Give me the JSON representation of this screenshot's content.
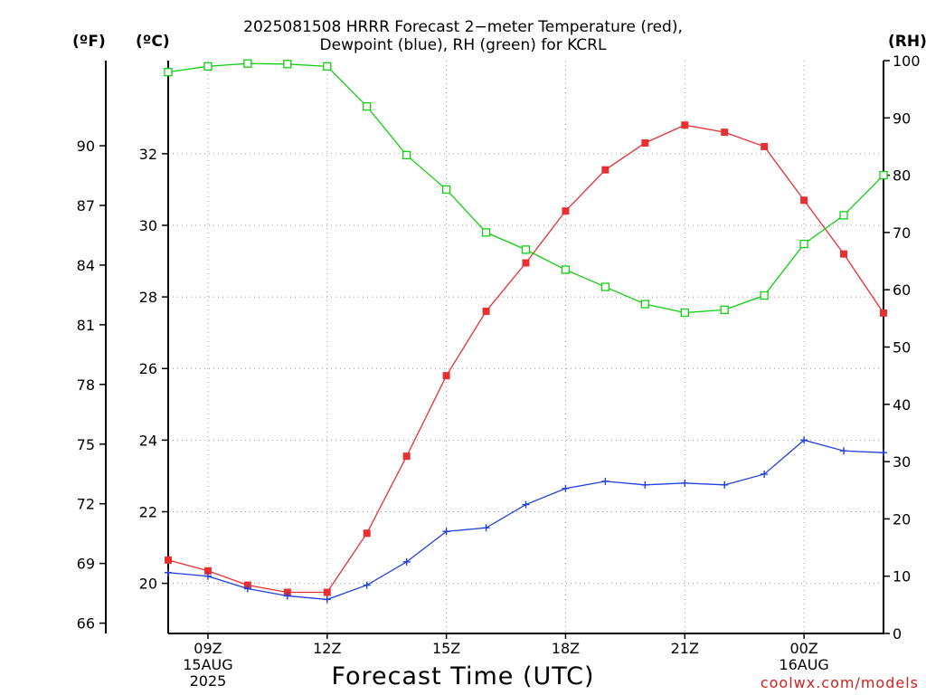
{
  "title_line1": "2025081508 HRRR Forecast 2−meter Temperature (red),",
  "title_line2": "Dewpoint (blue), RH (green) for KCRL",
  "unit_f": "(ºF)",
  "unit_c": "(ºC)",
  "unit_rh": "(RH)",
  "xlabel": "Forecast Time (UTC)",
  "credit": "coolwx.com/models",
  "colors": {
    "temperature": "#e83030",
    "dewpoint": "#2040e0",
    "rh": "#10d010",
    "grid": "#9a9a9a",
    "axis": "#000000"
  },
  "chart_data": {
    "type": "line",
    "title": "2025081508 HRRR Forecast 2−meter Temperature (red), Dewpoint (blue), RH (green) for KCRL",
    "xlabel": "Forecast Time (UTC)",
    "x": [
      "08Z",
      "09Z",
      "10Z",
      "11Z",
      "12Z",
      "13Z",
      "14Z",
      "15Z",
      "16Z",
      "17Z",
      "18Z",
      "19Z",
      "20Z",
      "21Z",
      "22Z",
      "23Z",
      "00Z",
      "01Z",
      "02Z"
    ],
    "x_ticks": [
      {
        "index": 1,
        "lines": [
          "09Z",
          "15AUG",
          "2025"
        ]
      },
      {
        "index": 4,
        "lines": [
          "12Z"
        ]
      },
      {
        "index": 7,
        "lines": [
          "15Z"
        ]
      },
      {
        "index": 10,
        "lines": [
          "18Z"
        ]
      },
      {
        "index": 13,
        "lines": [
          "21Z"
        ]
      },
      {
        "index": 16,
        "lines": [
          "00Z",
          "16AUG"
        ]
      }
    ],
    "left_axis_c": {
      "label": "(ºC)",
      "ylim": [
        18.6,
        34.6
      ],
      "ticks": [
        20,
        22,
        24,
        26,
        28,
        30,
        32
      ]
    },
    "left_axis_f": {
      "label": "(ºF)",
      "ticks": [
        66,
        69,
        72,
        75,
        78,
        81,
        84,
        87,
        90
      ]
    },
    "right_axis": {
      "label": "(RH)",
      "ylim": [
        0,
        100
      ],
      "ticks": [
        0,
        10,
        20,
        30,
        40,
        50,
        60,
        70,
        80,
        90,
        100
      ]
    },
    "grid": true,
    "series": [
      {
        "key": "temperature",
        "axis": "c",
        "marker": "filled-square",
        "values": [
          20.65,
          20.35,
          19.95,
          19.75,
          19.75,
          21.4,
          23.55,
          25.8,
          27.6,
          28.95,
          30.4,
          31.55,
          32.3,
          32.8,
          32.6,
          32.2,
          30.7,
          29.2,
          27.55
        ]
      },
      {
        "key": "dewpoint",
        "axis": "c",
        "marker": "plus",
        "values": [
          20.3,
          20.2,
          19.85,
          19.65,
          19.55,
          19.95,
          20.6,
          21.45,
          21.55,
          22.2,
          22.65,
          22.85,
          22.75,
          22.8,
          22.75,
          23.05,
          24.0,
          23.7,
          23.65
        ]
      },
      {
        "key": "rh",
        "axis": "rh",
        "marker": "open-square",
        "values": [
          98,
          99,
          99.5,
          99.4,
          99,
          92,
          83.5,
          77.5,
          70,
          67,
          63.5,
          60.5,
          57.5,
          56,
          56.5,
          59,
          68,
          73,
          80
        ]
      }
    ]
  }
}
